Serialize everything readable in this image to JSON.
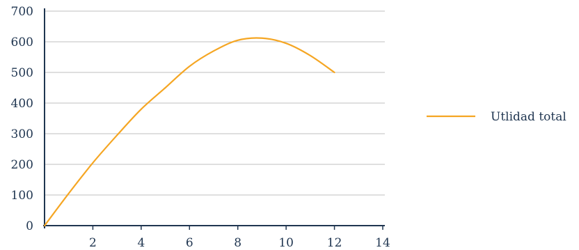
{
  "chart_data": {
    "type": "line",
    "title": "",
    "xlabel": "",
    "ylabel": "",
    "xlim": [
      0,
      14
    ],
    "ylim": [
      0,
      700
    ],
    "x_ticks": [
      "2",
      "4",
      "6",
      "8",
      "10",
      "12",
      "14"
    ],
    "y_ticks": [
      "0",
      "100",
      "200",
      "300",
      "400",
      "500",
      "600",
      "700"
    ],
    "grid": "horizontal",
    "legend_position": "right",
    "series": [
      {
        "name": "Utlidad total",
        "color": "#f5a623",
        "x": [
          0,
          1,
          2,
          3,
          4,
          5,
          6,
          7,
          8,
          9,
          10,
          11,
          12
        ],
        "y": [
          0,
          105,
          205,
          295,
          380,
          450,
          520,
          570,
          605,
          612,
          595,
          555,
          500
        ]
      }
    ]
  },
  "colors": {
    "axis": "#1f3550",
    "grid": "#bfbfbf",
    "text": "#1f3550"
  }
}
